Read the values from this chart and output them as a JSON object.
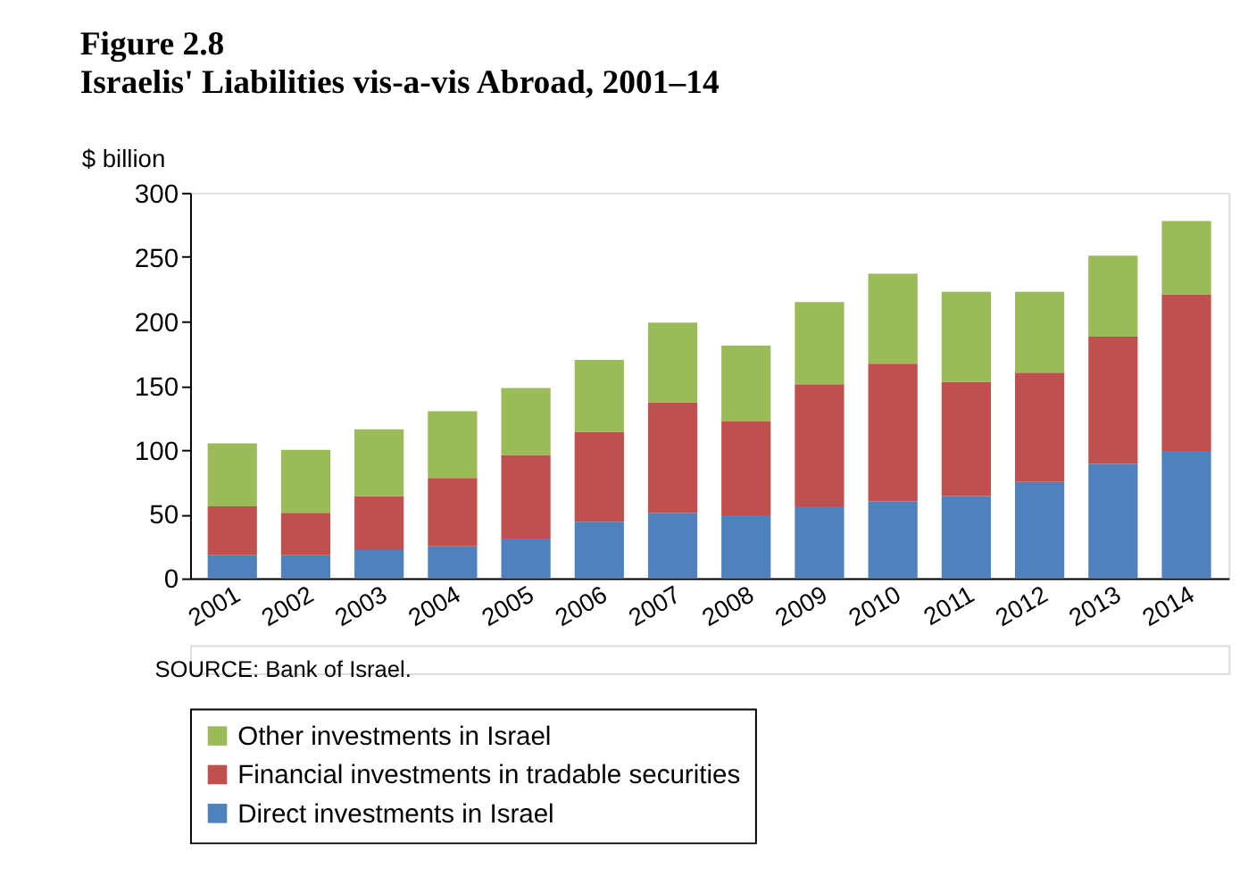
{
  "chart_data": {
    "type": "bar",
    "title": "Figure 2.8",
    "subtitle": "Israelis' Liabilities vis-a-vis Abroad, 2001–14",
    "ylabel": "$ billion",
    "categories": [
      "2001",
      "2002",
      "2003",
      "2004",
      "2005",
      "2006",
      "2007",
      "2008",
      "2009",
      "2010",
      "2011",
      "2012",
      "2013",
      "2014"
    ],
    "series": [
      {
        "name": "Direct investments in Israel",
        "color": "#4f81bd",
        "values": [
          18,
          18,
          22,
          25,
          31,
          44,
          51,
          49,
          56,
          60,
          64,
          75,
          89,
          99
        ]
      },
      {
        "name": "Financial investments in tradable securities",
        "color": "#c0504d",
        "values": [
          38,
          33,
          42,
          53,
          65,
          70,
          86,
          73,
          95,
          107,
          89,
          85,
          99,
          122
        ]
      },
      {
        "name": "Other investments in Israel",
        "color": "#9bbb59",
        "values": [
          49,
          49,
          52,
          52,
          52,
          56,
          62,
          59,
          64,
          70,
          70,
          63,
          63,
          57
        ]
      }
    ],
    "stacked": true,
    "ylim": [
      0,
      300
    ],
    "yticks": [
      0,
      50,
      100,
      150,
      200,
      250,
      300
    ],
    "grid": false,
    "legend": "bottom",
    "annotations": [
      "SOURCE: Bank of Israel."
    ]
  }
}
